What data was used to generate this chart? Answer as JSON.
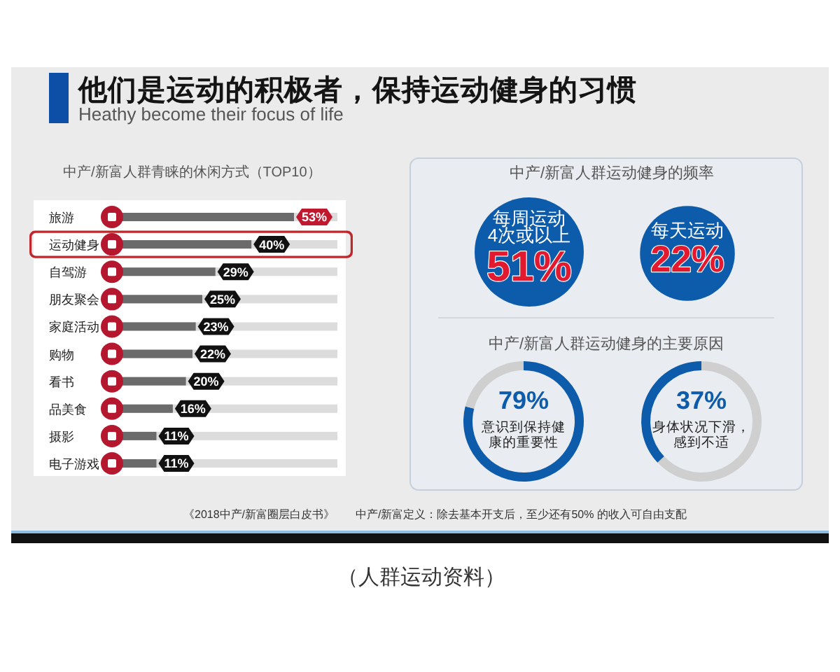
{
  "chart_data": [
    {
      "type": "other",
      "title": "他们是运动的积极者，保持运动健身的习惯",
      "subtitle": "Heathy become their focus of life",
      "annotations": [
        "《2018中产/新富圈层白皮书》",
        "中产/新富定义：除去基本开支后，至少还有50% 的收入可自由支配",
        "（人群运动资料）"
      ]
    },
    {
      "type": "bar",
      "orientation": "horizontal",
      "title": "中产/新富人群青睐的休闲方式（TOP10）",
      "categories": [
        "旅游",
        "运动健身",
        "自驾游",
        "朋友聚会",
        "家庭活动",
        "购物",
        "看书",
        "品美食",
        "摄影",
        "电子游戏"
      ],
      "values": [
        53,
        40,
        29,
        25,
        23,
        22,
        20,
        16,
        11,
        11
      ],
      "value_labels": [
        "53%",
        "40%",
        "29%",
        "25%",
        "23%",
        "22%",
        "20%",
        "16%",
        "11%",
        "11%"
      ],
      "color": "#6b6b6b",
      "tick_labels": "y",
      "bands": [
        {
          "axis": "y",
          "from": "运动健身",
          "to": "运动健身",
          "color": "#c0272d"
        }
      ]
    },
    {
      "type": "other",
      "title": "中产/新富人群运动健身的频率",
      "categories": [
        "每周运动 4次或以上",
        "每天运动"
      ],
      "values": [
        51,
        22
      ],
      "value_labels": [
        "51%",
        "22%"
      ],
      "colors": [
        "#0d5bab",
        "#0d5bab"
      ]
    },
    {
      "type": "donut",
      "title": "中产/新富人群运动健身的主要原因",
      "categories": [
        "意识到保持健康的重要性",
        null
      ],
      "values": [
        79,
        21
      ],
      "value_labels": [
        "79%",
        null
      ],
      "colors": [
        "#0d5cab",
        "#cfcfcf"
      ]
    },
    {
      "type": "donut",
      "categories": [
        null,
        "身体状况下滑，感到不适"
      ],
      "values": [
        63,
        37
      ],
      "value_labels": [
        null,
        "37%"
      ],
      "colors": [
        "#cfcfcf",
        "#0d5cab"
      ]
    }
  ]
}
